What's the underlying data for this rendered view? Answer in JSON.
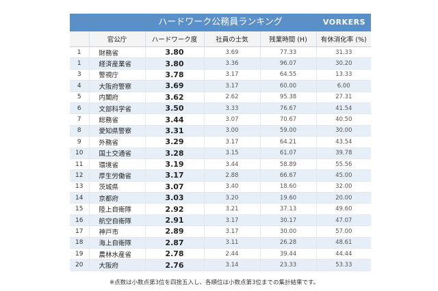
{
  "header": {
    "title": "ハードワーク公務員ランキング",
    "brand": "VORKERS"
  },
  "columns": [
    "",
    "官公庁",
    "ハードワーク度",
    "社員の士気",
    "残業時間 (H)",
    "有休消化率 (%)"
  ],
  "rows": [
    {
      "rank": "1",
      "agency": "財務省",
      "score": "3.80",
      "morale": "3.69",
      "overtime": "77.33",
      "leave": "31.33"
    },
    {
      "rank": "1",
      "agency": "経済産業省",
      "score": "3.80",
      "morale": "3.36",
      "overtime": "96.07",
      "leave": "30.20"
    },
    {
      "rank": "3",
      "agency": "警視庁",
      "score": "3.78",
      "morale": "3.17",
      "overtime": "64.55",
      "leave": "13.33"
    },
    {
      "rank": "4",
      "agency": "大阪府警察",
      "score": "3.69",
      "morale": "3.17",
      "overtime": "60.00",
      "leave": "6.00"
    },
    {
      "rank": "5",
      "agency": "内閣府",
      "score": "3.62",
      "morale": "2.62",
      "overtime": "95.38",
      "leave": "27.31"
    },
    {
      "rank": "6",
      "agency": "文部科学省",
      "score": "3.50",
      "morale": "3.33",
      "overtime": "76.67",
      "leave": "41.54"
    },
    {
      "rank": "7",
      "agency": "総務省",
      "score": "3.44",
      "morale": "3.07",
      "overtime": "70.67",
      "leave": "40.50"
    },
    {
      "rank": "8",
      "agency": "愛知県警察",
      "score": "3.31",
      "morale": "3.00",
      "overtime": "59.00",
      "leave": "30.00"
    },
    {
      "rank": "9",
      "agency": "外務省",
      "score": "3.29",
      "morale": "3.17",
      "overtime": "64.21",
      "leave": "43.54"
    },
    {
      "rank": "10",
      "agency": "国土交通省",
      "score": "3.28",
      "morale": "3.15",
      "overtime": "61.07",
      "leave": "39.78"
    },
    {
      "rank": "11",
      "agency": "環境省",
      "score": "3.19",
      "morale": "3.44",
      "overtime": "58.89",
      "leave": "55.56"
    },
    {
      "rank": "12",
      "agency": "厚生労働省",
      "score": "3.17",
      "morale": "2.88",
      "overtime": "66.67",
      "leave": "45.00"
    },
    {
      "rank": "13",
      "agency": "茨城県",
      "score": "3.07",
      "morale": "3.40",
      "overtime": "18.60",
      "leave": "32.00"
    },
    {
      "rank": "14",
      "agency": "京都府",
      "score": "3.03",
      "morale": "3.20",
      "overtime": "19.60",
      "leave": "20.00"
    },
    {
      "rank": "15",
      "agency": "陸上自衛隊",
      "score": "2.92",
      "morale": "3.21",
      "overtime": "37.13",
      "leave": "49.60"
    },
    {
      "rank": "16",
      "agency": "航空自衛隊",
      "score": "2.91",
      "morale": "3.17",
      "overtime": "30.17",
      "leave": "47.07"
    },
    {
      "rank": "17",
      "agency": "神戸市",
      "score": "2.89",
      "morale": "3.17",
      "overtime": "30.00",
      "leave": "57.00"
    },
    {
      "rank": "18",
      "agency": "海上自衛隊",
      "score": "2.87",
      "morale": "3.11",
      "overtime": "26.28",
      "leave": "48.61"
    },
    {
      "rank": "19",
      "agency": "農林水産省",
      "score": "2.78",
      "morale": "2.44",
      "overtime": "39.44",
      "leave": "44.44"
    },
    {
      "rank": "20",
      "agency": "大阪府",
      "score": "2.76",
      "morale": "3.14",
      "overtime": "23.33",
      "leave": "53.33"
    }
  ],
  "footnote": "※点数は小数点第3位を四捨五入し、各順位は小数点第3位までの集計結果です。"
}
